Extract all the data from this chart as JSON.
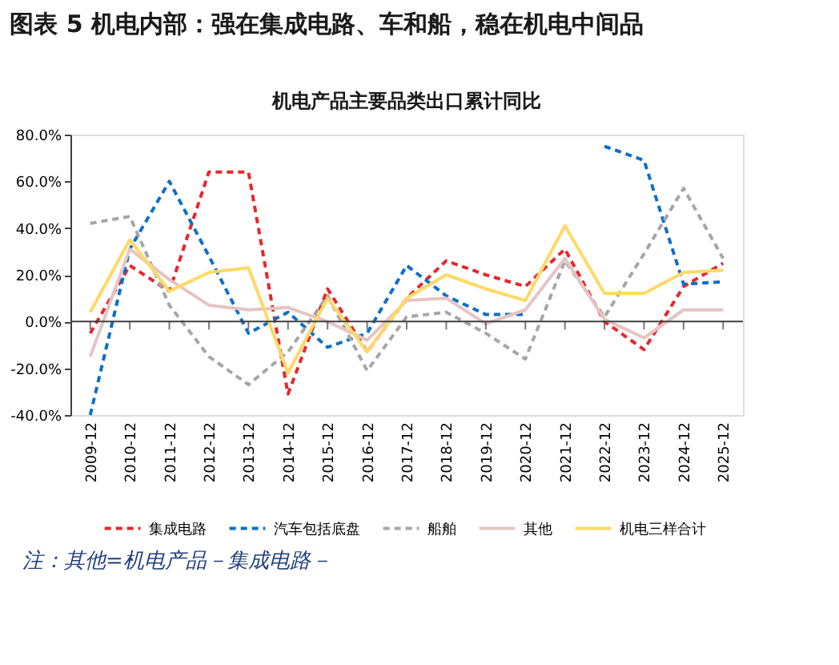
{
  "chart_data": {
    "type": "line",
    "title": "图表 5   机电内部：强在集成电路、车和船，稳在机电中间品",
    "subtitle": "机电产品主要品类出口累计同比",
    "categories": [
      "2009-12",
      "2010-12",
      "2011-12",
      "2012-12",
      "2013-12",
      "2014-12",
      "2015-12",
      "2016-12",
      "2017-12",
      "2018-12",
      "2019-12",
      "2020-12",
      "2021-12",
      "2022-12",
      "2023-12",
      "2024-12",
      "2025-12"
    ],
    "series": [
      {
        "name": "集成电路",
        "color": "#e8262a",
        "line_style": "dashed",
        "values": [
          -5,
          24,
          13,
          64,
          64,
          -31,
          14,
          -13,
          10,
          26,
          20,
          15,
          31,
          0,
          -12,
          15,
          25
        ]
      },
      {
        "name": "汽车包括底盘",
        "color": "#0e6fc6",
        "line_style": "dashed",
        "values": [
          -40,
          31,
          60,
          28,
          -5,
          4,
          -11,
          -5,
          24,
          11,
          3,
          3,
          null,
          75,
          69,
          16,
          17
        ]
      },
      {
        "name": "船舶",
        "color": "#a6a6a6",
        "line_style": "dashed",
        "values": [
          42,
          45,
          7,
          -15,
          -27,
          -13,
          11,
          -21,
          2,
          4,
          -5,
          -16,
          26,
          2,
          29,
          57,
          27
        ]
      },
      {
        "name": "其他",
        "color": "#e6c4c4",
        "line_style": "solid",
        "values": [
          -15,
          31,
          18,
          7,
          5,
          6,
          0,
          -8,
          9,
          10,
          -1,
          5,
          27,
          1,
          -7,
          5,
          5
        ]
      },
      {
        "name": "机电三样合计",
        "color": "#ffd966",
        "line_style": "solid",
        "values": [
          4,
          35,
          13,
          21,
          23,
          -22,
          10,
          -13,
          10,
          20,
          14,
          9,
          41,
          12,
          12,
          21,
          22
        ]
      }
    ],
    "ylim": [
      -40,
      80
    ],
    "yticks": [
      {
        "value": -40,
        "label": "-40.0%"
      },
      {
        "value": -20,
        "label": "-20.0%"
      },
      {
        "value": 0,
        "label": "0.0%"
      },
      {
        "value": 20,
        "label": "20.0%"
      },
      {
        "value": 40,
        "label": "40.0%"
      },
      {
        "value": 60,
        "label": "60.0%"
      },
      {
        "value": 80,
        "label": "80.0%"
      }
    ],
    "grid": false,
    "ref_lines": [
      {
        "axis": "y",
        "value": 0,
        "color": "#404040"
      }
    ],
    "legend": "bottom",
    "marker": "none",
    "annotations": [
      "注：其他=机电产品－集成电路－"
    ]
  }
}
